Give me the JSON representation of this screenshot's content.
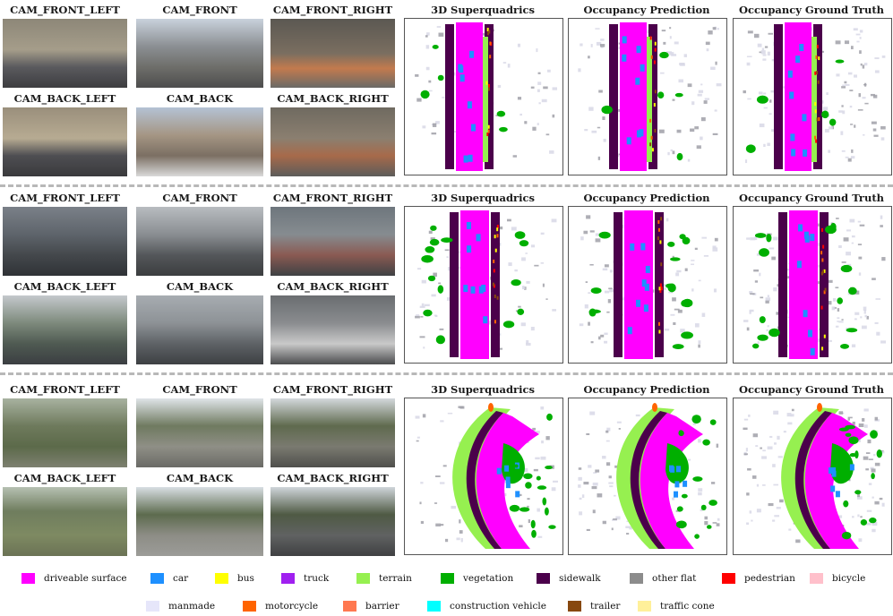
{
  "rows": [
    {
      "cameras": [
        "CAM_FRONT_LEFT",
        "CAM_FRONT",
        "CAM_FRONT_RIGHT",
        "CAM_BACK_LEFT",
        "CAM_BACK",
        "CAM_BACK_RIGHT"
      ],
      "panels": [
        "3D Superquadrics",
        "Occupancy Prediction",
        "Occupancy Ground Truth"
      ],
      "scene": "city"
    },
    {
      "cameras": [
        "CAM_FRONT_LEFT",
        "CAM_FRONT",
        "CAM_FRONT_RIGHT",
        "CAM_BACK_LEFT",
        "CAM_BACK",
        "CAM_BACK_RIGHT"
      ],
      "panels": [
        "3D Superquadrics",
        "Occupancy Prediction",
        "Occupancy Ground Truth"
      ],
      "scene": "rain"
    },
    {
      "cameras": [
        "CAM_FRONT_LEFT",
        "CAM_FRONT",
        "CAM_FRONT_RIGHT",
        "CAM_BACK_LEFT",
        "CAM_BACK",
        "CAM_BACK_RIGHT"
      ],
      "panels": [
        "3D Superquadrics",
        "Occupancy Prediction",
        "Occupancy Ground Truth"
      ],
      "scene": "park"
    }
  ],
  "legend": [
    {
      "label": "driveable surface",
      "color": "#ff00ff"
    },
    {
      "label": "car",
      "color": "#1e90ff"
    },
    {
      "label": "bus",
      "color": "#ffff00"
    },
    {
      "label": "truck",
      "color": "#a020f0"
    },
    {
      "label": "terrain",
      "color": "#96f050"
    },
    {
      "label": "vegetation",
      "color": "#00af00"
    },
    {
      "label": "sidewalk",
      "color": "#4b004b"
    },
    {
      "label": "other flat",
      "color": "#8c8c8c"
    },
    {
      "label": "pedestrian",
      "color": "#ff0000"
    },
    {
      "label": "bicycle",
      "color": "#ffc0cb"
    },
    {
      "label": "manmade",
      "color": "#e6e6fa"
    },
    {
      "label": "motorcycle",
      "color": "#ff6400"
    },
    {
      "label": "barrier",
      "color": "#ff7850"
    },
    {
      "label": "construction vehicle",
      "color": "#00ffff"
    },
    {
      "label": "trailer",
      "color": "#87480f"
    },
    {
      "label": "traffic cone",
      "color": "#fff09a"
    }
  ]
}
